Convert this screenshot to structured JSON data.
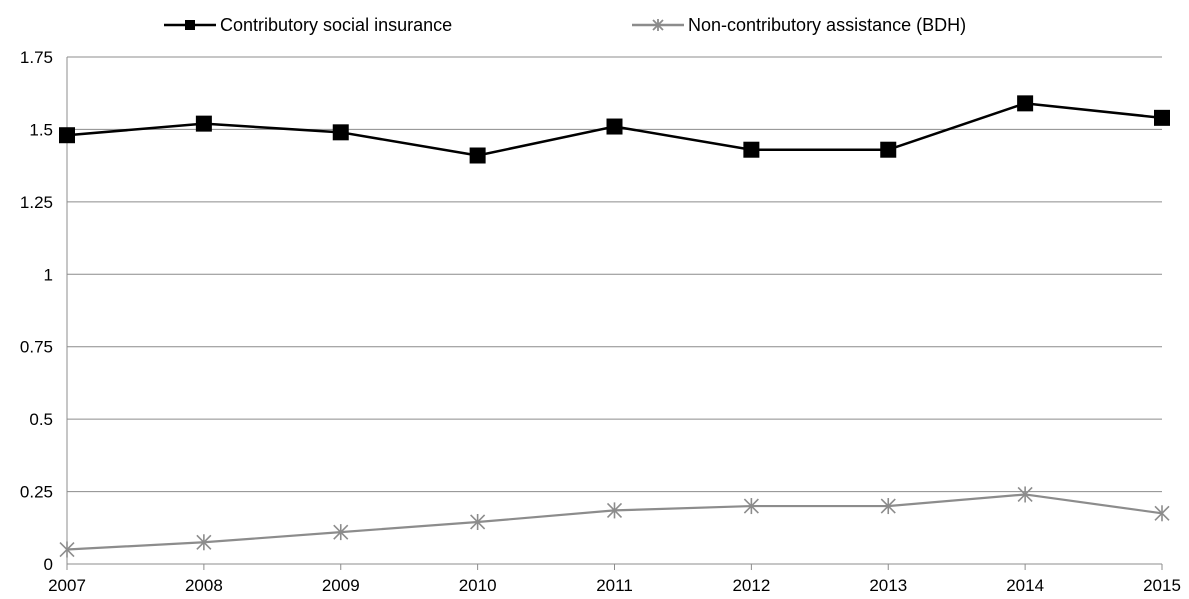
{
  "chart_data": {
    "type": "line",
    "title": "",
    "xlabel": "",
    "ylabel": "",
    "categories": [
      "2007",
      "2008",
      "2009",
      "2010",
      "2011",
      "2012",
      "2013",
      "2014",
      "2015"
    ],
    "ylim": [
      0,
      1.75
    ],
    "yticks": [
      0,
      0.25,
      0.5,
      0.75,
      1,
      1.25,
      1.5,
      1.75
    ],
    "ytick_labels": [
      "0",
      "0.25",
      "0.5",
      "0.75",
      "1",
      "1.25",
      "1.5",
      "1.75"
    ],
    "grid": true,
    "legend": "top-center",
    "series": [
      {
        "name": "Contributory social insurance",
        "values": [
          1.48,
          1.52,
          1.49,
          1.41,
          1.51,
          1.43,
          1.43,
          1.59,
          1.54
        ],
        "color": "#000000",
        "marker": "square"
      },
      {
        "name": "Non-contributory assistance (BDH)",
        "values": [
          0.05,
          0.075,
          0.11,
          0.145,
          0.185,
          0.2,
          0.2,
          0.24,
          0.175
        ],
        "color": "#8c8c8c",
        "marker": "star"
      }
    ]
  }
}
